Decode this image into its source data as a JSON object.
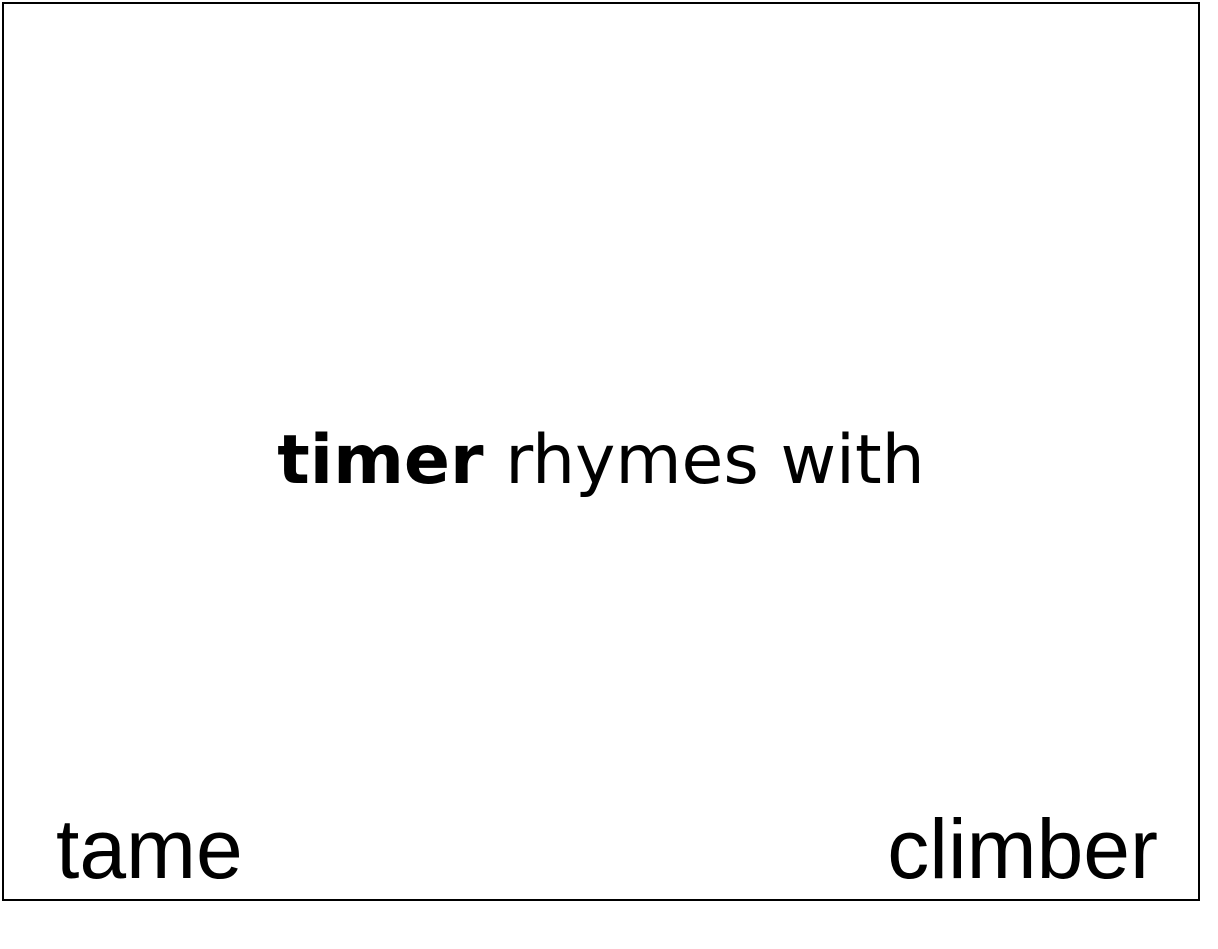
{
  "prompt": {
    "target_word": "timer",
    "phrase": "rhymes with"
  },
  "options": {
    "left": "tame",
    "right": "climber"
  }
}
